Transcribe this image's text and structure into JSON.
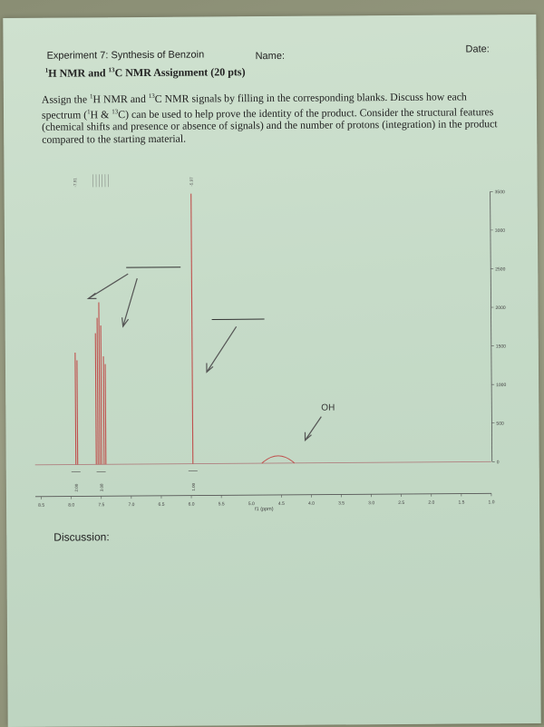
{
  "header": {
    "experiment_title": "Experiment 7: Synthesis of Benzoin",
    "name_label": "Name:",
    "date_label": "Date:"
  },
  "assignment": {
    "title_h_sup": "1",
    "title_h": "H NMR and ",
    "title_c_sup": "13",
    "title_c": "C NMR Assignment (20 pts)"
  },
  "instructions": {
    "part1": "Assign the ",
    "sup1": "1",
    "part2": "H NMR and ",
    "sup2": "13",
    "part3": "C NMR signals by filling in the corresponding blanks.  Discuss how each spectrum (",
    "sup3": "1",
    "part4": "H & ",
    "sup4": "13",
    "part5": "C) can be used to help prove the identity of the product.  Consider the structural features (chemical shifts and presence or absence of signals) and the number of protons (integration) in the product compared to the starting material."
  },
  "spectrum": {
    "xlabel_value": "5.0",
    "xlabel": "f1 (ppm)",
    "oh_label": "OH",
    "peak_labels_left": "-7.91",
    "peak_label_right": "-5.97",
    "x_ticks": [
      "8.5",
      "8.0",
      "7.5",
      "7.0",
      "6.5",
      "6.0",
      "5.5",
      "4.5",
      "4.0",
      "3.5",
      "3.0",
      "2.5",
      "2.0",
      "1.5",
      "1.0"
    ],
    "y_ticks": [
      "3500",
      "3000",
      "2500",
      "2000",
      "1500",
      "1000",
      "500",
      "0"
    ],
    "integrals": [
      "2.00",
      "3.08",
      "1.00"
    ],
    "line_color": "#c0504d"
  },
  "chart_data": {
    "type": "line",
    "title": "",
    "xlabel": "f1 (ppm)",
    "ylabel": "",
    "xlim": [
      8.6,
      1.0
    ],
    "ylim": [
      0,
      3500
    ],
    "peaks": [
      {
        "x": 7.92,
        "y": 1450
      },
      {
        "x": 7.89,
        "y": 1350
      },
      {
        "x": 7.58,
        "y": 1700
      },
      {
        "x": 7.55,
        "y": 1900
      },
      {
        "x": 7.52,
        "y": 2100
      },
      {
        "x": 7.49,
        "y": 1800
      },
      {
        "x": 7.45,
        "y": 1400
      },
      {
        "x": 7.42,
        "y": 1300
      },
      {
        "x": 5.97,
        "y": 3500
      },
      {
        "x": 4.55,
        "y": 120
      }
    ]
  },
  "discussion_label": "Discussion:"
}
